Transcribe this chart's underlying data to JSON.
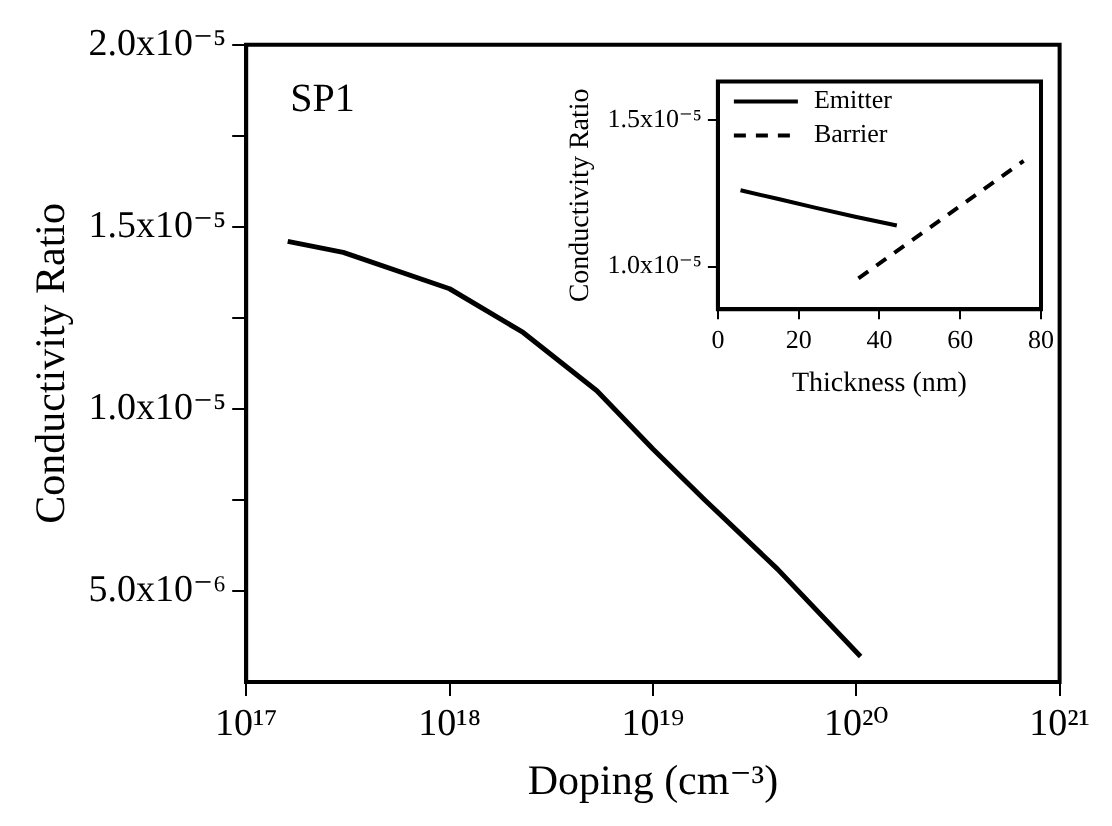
{
  "chart_data": [
    {
      "type": "line",
      "xlabel": "Doping (cm⁻³)",
      "ylabel": "Conductivity Ratio",
      "annotations": [
        "SP1"
      ],
      "log": "x",
      "grid": false,
      "legend": false,
      "marker": "none",
      "xlim": [
        1e+17,
        1e+21
      ],
      "xticks": [
        {
          "value": 1e+17,
          "label": "10¹⁷"
        },
        {
          "value": 1e+18,
          "label": "10¹⁸"
        },
        {
          "value": 1e+19,
          "label": "10¹⁹"
        },
        {
          "value": 1e+20,
          "label": "10²⁰"
        },
        {
          "value": 1e+21,
          "label": "10²¹"
        }
      ],
      "ylim": [
        2.5e-06,
        2e-05
      ],
      "yticks": [
        {
          "value": 5e-06,
          "label": "5.0x10⁻⁶"
        },
        {
          "value": 7.5e-06,
          "label": null
        },
        {
          "value": 1e-05,
          "label": "1.0x10⁻⁵"
        },
        {
          "value": 1.25e-05,
          "label": null
        },
        {
          "value": 1.5e-05,
          "label": "1.5x10⁻⁵"
        },
        {
          "value": 1.75e-05,
          "label": null
        },
        {
          "value": 2e-05,
          "label": "2.0x10⁻⁵"
        }
      ],
      "series": [
        {
          "color": "#000000",
          "line_style": "solid",
          "x": [
            1.6e+17,
            3e+17,
            1e+18,
            2.3e+18,
            5.3e+18,
            1e+19,
            1.8e+19,
            4.1e+19,
            1.05e+20
          ],
          "values": [
            1.46e-05,
            1.43e-05,
            1.33e-05,
            1.21e-05,
            1.05e-05,
            8.9e-06,
            7.5e-06,
            5.6e-06,
            3.2e-06
          ]
        }
      ]
    },
    {
      "type": "line",
      "xlabel": "Thickness (nm)",
      "ylabel": "Conductivity Ratio",
      "grid": false,
      "legend": "top left",
      "marker": "none",
      "xlim": [
        0,
        80
      ],
      "xticks": [
        0,
        20,
        40,
        60,
        80
      ],
      "ylim": [
        8.55e-06,
        1.63e-05
      ],
      "yticks": [
        {
          "value": 1e-05,
          "label": "1.0x10⁻⁵"
        },
        {
          "value": 1.5e-05,
          "label": "1.5x10⁻⁵"
        }
      ],
      "series": [
        {
          "name": "Emitter",
          "color": "#000000",
          "line_style": "solid",
          "x": [
            5.6,
            15,
            24.3,
            34,
            44.3
          ],
          "values": [
            1.26e-05,
            1.23e-05,
            1.2e-05,
            1.17e-05,
            1.14e-05
          ]
        },
        {
          "name": "Barrier",
          "color": "#000000",
          "line_style": "dashed",
          "x": [
            34.8,
            75.7
          ],
          "values": [
            9.6e-06,
            1.36e-05
          ]
        }
      ]
    }
  ]
}
